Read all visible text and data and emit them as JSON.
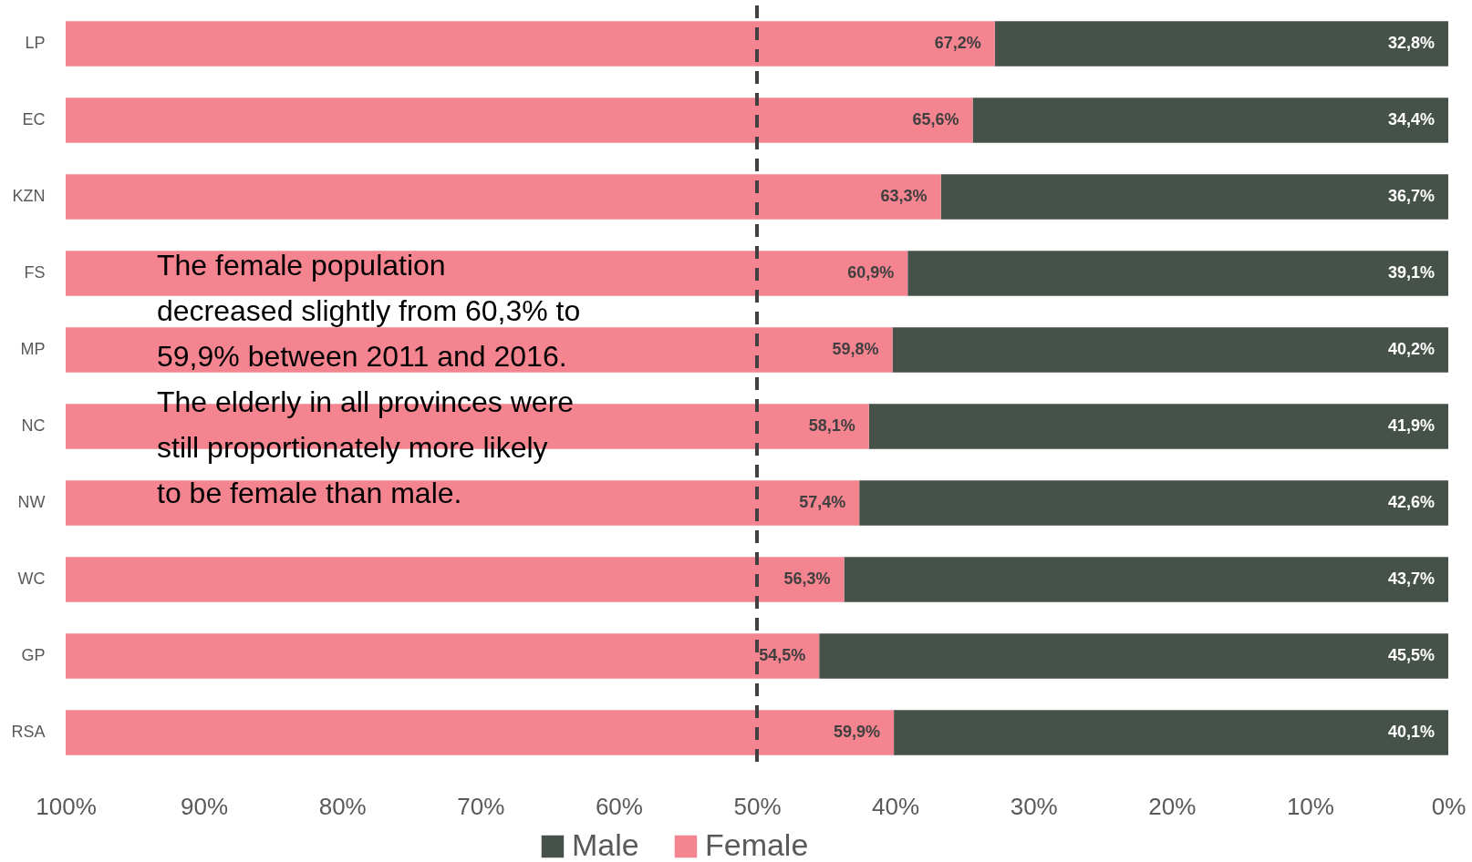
{
  "chart_data": {
    "type": "bar",
    "orientation": "horizontal",
    "stacked": true,
    "categories": [
      "LP",
      "EC",
      "KZN",
      "FS",
      "MP",
      "NC",
      "NW",
      "WC",
      "GP",
      "RSA"
    ],
    "series": [
      {
        "name": "Male",
        "color": "#465249",
        "values": [
          32.8,
          34.4,
          36.7,
          39.1,
          40.2,
          41.9,
          42.6,
          43.7,
          45.5,
          40.1
        ],
        "value_labels": [
          "32,8%",
          "34,4%",
          "36,7%",
          "39,1%",
          "40,2%",
          "41,9%",
          "42,6%",
          "43,7%",
          "45,5%",
          "40,1%"
        ]
      },
      {
        "name": "Female",
        "color": "#f4848f",
        "values": [
          67.2,
          65.6,
          63.3,
          60.9,
          59.8,
          58.1,
          57.4,
          56.3,
          54.5,
          59.9
        ],
        "value_labels": [
          "67,2%",
          "65,6%",
          "63,3%",
          "60,9%",
          "59,8%",
          "58,1%",
          "57,4%",
          "56,3%",
          "54,5%",
          "59,9%"
        ]
      }
    ],
    "xlim": [
      100,
      0
    ],
    "xticks": [
      {
        "value": 100,
        "label": "100%"
      },
      {
        "value": 90,
        "label": "90%"
      },
      {
        "value": 80,
        "label": "80%"
      },
      {
        "value": 70,
        "label": "70%"
      },
      {
        "value": 60,
        "label": "60%"
      },
      {
        "value": 50,
        "label": "50%"
      },
      {
        "value": 40,
        "label": "40%"
      },
      {
        "value": 30,
        "label": "30%"
      },
      {
        "value": 20,
        "label": "20%"
      },
      {
        "value": 10,
        "label": "10%"
      },
      {
        "value": 0,
        "label": "0%"
      }
    ],
    "ref_lines": [
      {
        "axis": "x",
        "value": 50,
        "color": "#404040",
        "line_style": "dashed"
      }
    ],
    "annotations": [
      "The female population\ndecreased slightly from 60,3% to\n59,9% between 2011 and 2016.\nThe elderly in all provinces were\nstill proportionately more likely\nto be female than male."
    ],
    "legend": "bottom",
    "grid": false
  }
}
